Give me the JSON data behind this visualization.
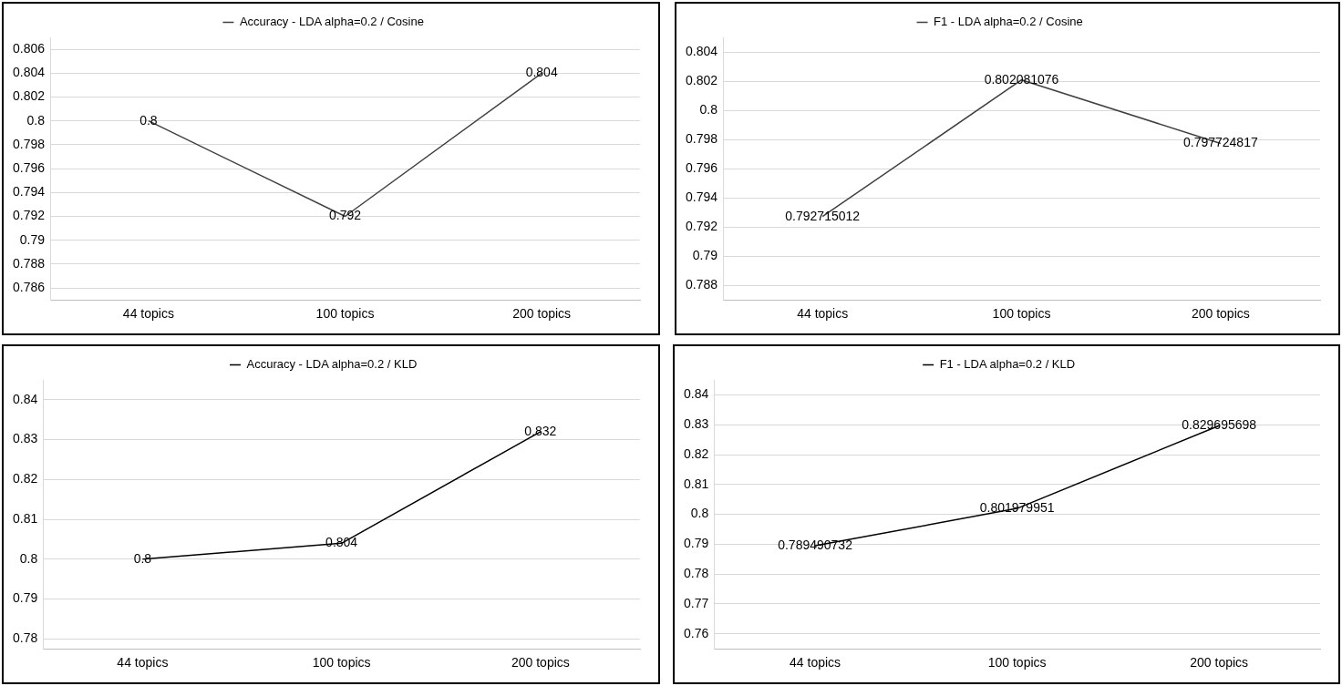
{
  "chart_data": [
    {
      "type": "line",
      "categories": [
        "44 topics",
        "100 topics",
        "200 topics"
      ],
      "series": [
        {
          "name": "Accuracy - LDA alpha=0.2 / Cosine",
          "color": "#404040",
          "values": [
            0.8,
            0.792,
            0.804
          ]
        }
      ],
      "ylim": [
        0.785,
        0.807
      ],
      "yticks": [
        0.786,
        0.788,
        0.79,
        0.792,
        0.794,
        0.796,
        0.798,
        0.8,
        0.802,
        0.804,
        0.806
      ],
      "grid": "y",
      "legend": "top",
      "data_labels": true,
      "marker": "none"
    },
    {
      "type": "line",
      "categories": [
        "44 topics",
        "100 topics",
        "200 topics"
      ],
      "series": [
        {
          "name": "F1 - LDA alpha=0.2 / Cosine",
          "color": "#404040",
          "values": [
            0.792715012,
            0.802081076,
            0.797724817
          ]
        }
      ],
      "ylim": [
        0.787,
        0.805
      ],
      "yticks": [
        0.788,
        0.79,
        0.792,
        0.794,
        0.796,
        0.798,
        0.8,
        0.802,
        0.804
      ],
      "grid": "y",
      "legend": "top",
      "data_labels": true,
      "marker": "none"
    },
    {
      "type": "line",
      "categories": [
        "44 topics",
        "100 topics",
        "200 topics"
      ],
      "series": [
        {
          "name": "Accuracy - LDA alpha=0.2 / KLD",
          "color": "#000000",
          "values": [
            0.8,
            0.804,
            0.832
          ]
        }
      ],
      "ylim": [
        0.7775,
        0.845
      ],
      "yticks": [
        0.78,
        0.79,
        0.8,
        0.81,
        0.82,
        0.83,
        0.84
      ],
      "grid": "y",
      "legend": "top",
      "data_labels": true,
      "marker": "none"
    },
    {
      "type": "line",
      "categories": [
        "44 topics",
        "100 topics",
        "200 topics"
      ],
      "series": [
        {
          "name": "F1 - LDA alpha=0.2 / KLD",
          "color": "#000000",
          "values": [
            0.789490732,
            0.801979951,
            0.829695698
          ]
        }
      ],
      "ylim": [
        0.755,
        0.845
      ],
      "yticks": [
        0.76,
        0.77,
        0.78,
        0.79,
        0.8,
        0.81,
        0.82,
        0.83,
        0.84
      ],
      "grid": "y",
      "legend": "top",
      "data_labels": true,
      "marker": "none"
    }
  ]
}
